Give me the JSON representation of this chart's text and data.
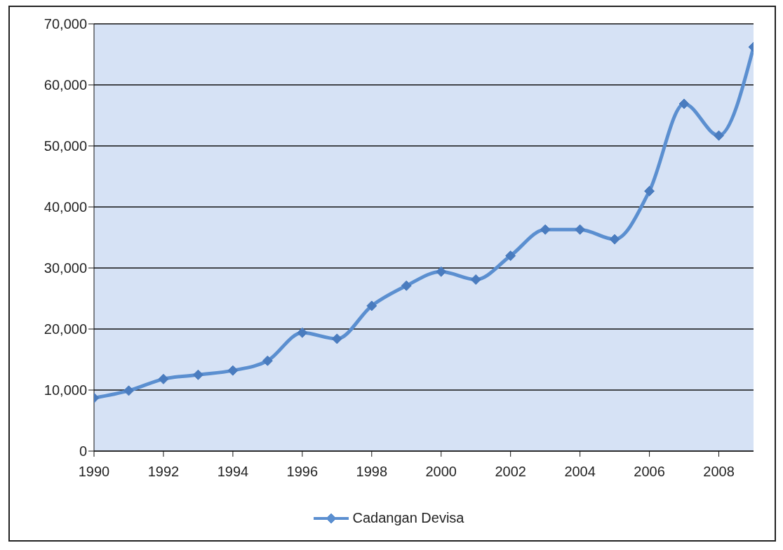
{
  "chart_data": {
    "type": "line",
    "x": [
      1990,
      1991,
      1992,
      1993,
      1994,
      1995,
      1996,
      1997,
      1998,
      1999,
      2000,
      2001,
      2002,
      2003,
      2004,
      2005,
      2006,
      2007,
      2008,
      2009
    ],
    "series": [
      {
        "name": "Cadangan Devisa",
        "color": "#5b8fd0",
        "values": [
          8700,
          9900,
          11800,
          12500,
          13200,
          14800,
          19400,
          18400,
          23800,
          27100,
          29400,
          28100,
          32000,
          36300,
          36300,
          34700,
          42600,
          56900,
          51700,
          66200
        ]
      }
    ],
    "xlim": [
      1990,
      2009
    ],
    "xticks": [
      1990,
      1992,
      1994,
      1996,
      1998,
      2000,
      2002,
      2004,
      2006,
      2008
    ],
    "ylim": [
      0,
      70000
    ],
    "yticks": [
      {
        "value": 0,
        "label": "0"
      },
      {
        "value": 10000,
        "label": "10,000"
      },
      {
        "value": 20000,
        "label": "20,000"
      },
      {
        "value": 30000,
        "label": "30,000"
      },
      {
        "value": 40000,
        "label": "40,000"
      },
      {
        "value": 50000,
        "label": "50,000"
      },
      {
        "value": 60000,
        "label": "60,000"
      },
      {
        "value": 70000,
        "label": "70,000"
      }
    ],
    "grid": "y",
    "legend": "bottom",
    "marker": "diamond",
    "line_style": "solid"
  }
}
